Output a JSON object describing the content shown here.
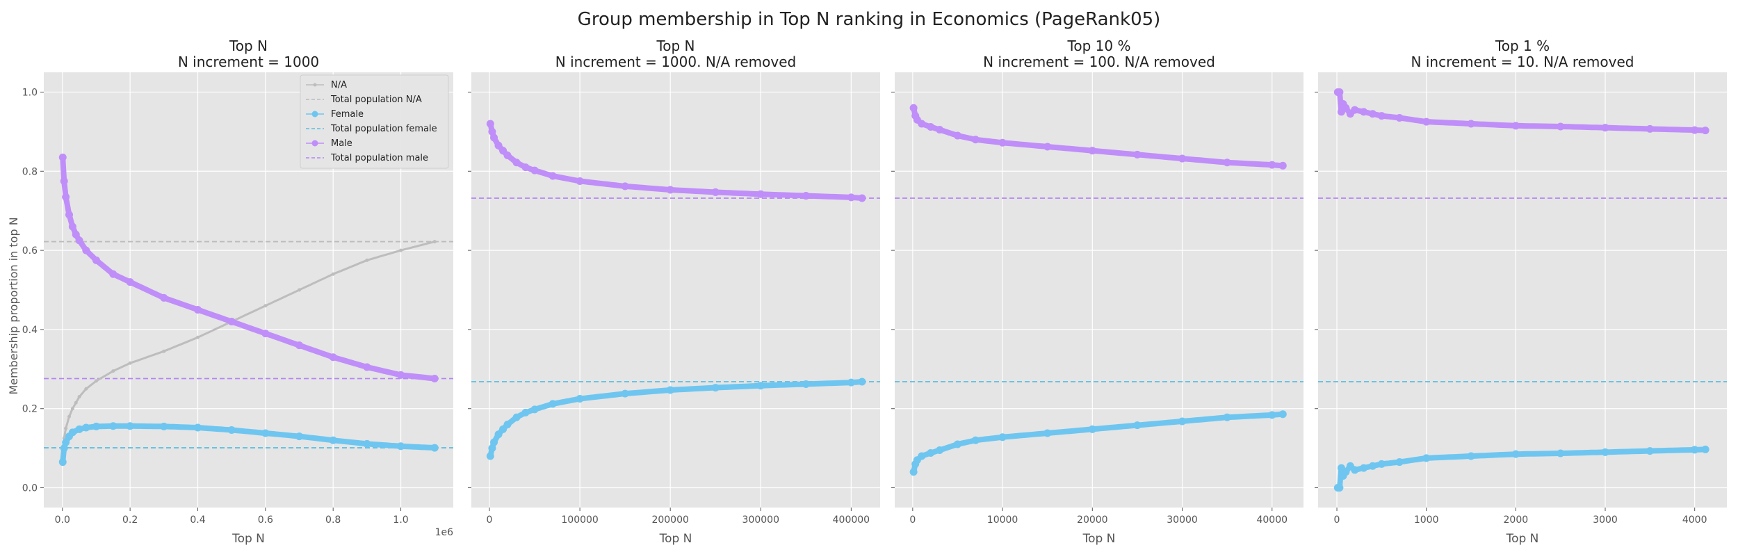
{
  "figure": {
    "title": "Group membership in Top N ranking in Economics (PageRank05)",
    "ylabel": "Membership proportion in top N"
  },
  "colors": {
    "na": "#bdbdbd",
    "female": "#6ec6f0",
    "male": "#c08ef8",
    "female_ref": "#5bbde0",
    "male_ref": "#b585f2",
    "na_ref": "#bbbbbb",
    "panel_bg": "#e5e5e5",
    "grid": "#ffffff"
  },
  "legend": {
    "placement": "top-right",
    "entries": [
      {
        "label": "N/A",
        "kind": "marker",
        "key": "na"
      },
      {
        "label": "Total population N/A",
        "kind": "dashed",
        "key": "na_ref"
      },
      {
        "label": "Female",
        "kind": "marker",
        "key": "female"
      },
      {
        "label": "Total population female",
        "kind": "dashed",
        "key": "female_ref"
      },
      {
        "label": "Male",
        "kind": "marker",
        "key": "male"
      },
      {
        "label": "Total population male",
        "kind": "dashed",
        "key": "male_ref"
      }
    ]
  },
  "chart_data": [
    {
      "type": "scatter",
      "title": "Top N",
      "subtitle": "N increment = 1000",
      "xlabel": "Top N",
      "ylabel": "Membership proportion in top N",
      "xlim": [
        -55000,
        1155000
      ],
      "ylim": [
        -0.05,
        1.05
      ],
      "xticks": [
        0,
        200000,
        400000,
        600000,
        800000,
        1000000
      ],
      "xtick_labels": [
        "0.0",
        "0.2",
        "0.4",
        "0.6",
        "0.8",
        "1.0"
      ],
      "x_offset_label": "1e6",
      "yticks": [
        0.0,
        0.2,
        0.4,
        0.6,
        0.8,
        1.0
      ],
      "ytick_labels": [
        "0.0",
        "0.2",
        "0.4",
        "0.6",
        "0.8",
        "1.0"
      ],
      "grid": true,
      "show_legend": true,
      "reference_lines": [
        {
          "series": "na",
          "y": 0.622
        },
        {
          "series": "female",
          "y": 0.101
        },
        {
          "series": "male",
          "y": 0.276
        }
      ],
      "series": [
        {
          "name": "N/A",
          "key": "na",
          "x": [
            1000,
            5000,
            10000,
            20000,
            30000,
            40000,
            50000,
            70000,
            100000,
            150000,
            200000,
            300000,
            400000,
            500000,
            600000,
            700000,
            800000,
            900000,
            1000000,
            1100000
          ],
          "y": [
            0.1,
            0.125,
            0.15,
            0.18,
            0.2,
            0.215,
            0.23,
            0.25,
            0.27,
            0.295,
            0.315,
            0.345,
            0.38,
            0.42,
            0.46,
            0.5,
            0.54,
            0.575,
            0.6,
            0.622
          ]
        },
        {
          "name": "Female",
          "key": "female",
          "x": [
            1000,
            5000,
            10000,
            20000,
            30000,
            50000,
            70000,
            100000,
            150000,
            200000,
            300000,
            400000,
            500000,
            600000,
            700000,
            800000,
            900000,
            1000000,
            1100000
          ],
          "y": [
            0.065,
            0.1,
            0.115,
            0.13,
            0.14,
            0.148,
            0.152,
            0.155,
            0.156,
            0.156,
            0.155,
            0.152,
            0.146,
            0.138,
            0.13,
            0.12,
            0.111,
            0.105,
            0.101
          ]
        },
        {
          "name": "Male",
          "key": "male",
          "x": [
            1000,
            5000,
            10000,
            20000,
            30000,
            40000,
            50000,
            70000,
            100000,
            150000,
            200000,
            300000,
            400000,
            500000,
            600000,
            700000,
            800000,
            900000,
            1000000,
            1100000
          ],
          "y": [
            0.835,
            0.775,
            0.735,
            0.69,
            0.66,
            0.64,
            0.625,
            0.6,
            0.575,
            0.54,
            0.52,
            0.48,
            0.45,
            0.42,
            0.39,
            0.36,
            0.33,
            0.305,
            0.285,
            0.276
          ]
        }
      ]
    },
    {
      "type": "scatter",
      "title": "Top N",
      "subtitle": "N increment = 1000. N/A removed",
      "xlabel": "Top N",
      "ylabel": "",
      "xlim": [
        -20000,
        432000
      ],
      "ylim": [
        -0.05,
        1.05
      ],
      "xticks": [
        0,
        100000,
        200000,
        300000,
        400000
      ],
      "xtick_labels": [
        "0",
        "100000",
        "200000",
        "300000",
        "400000"
      ],
      "x_offset_label": "",
      "yticks": [
        0.0,
        0.2,
        0.4,
        0.6,
        0.8,
        1.0
      ],
      "ytick_labels": [],
      "grid": true,
      "show_legend": false,
      "reference_lines": [
        {
          "series": "female",
          "y": 0.268
        },
        {
          "series": "male",
          "y": 0.732
        }
      ],
      "series": [
        {
          "name": "Female",
          "key": "female",
          "x": [
            1000,
            3000,
            5000,
            10000,
            15000,
            20000,
            30000,
            40000,
            50000,
            70000,
            100000,
            150000,
            200000,
            250000,
            300000,
            350000,
            400000,
            412000
          ],
          "y": [
            0.08,
            0.1,
            0.115,
            0.135,
            0.148,
            0.16,
            0.178,
            0.19,
            0.198,
            0.212,
            0.225,
            0.238,
            0.247,
            0.253,
            0.258,
            0.262,
            0.266,
            0.268
          ]
        },
        {
          "name": "Male",
          "key": "male",
          "x": [
            1000,
            3000,
            5000,
            10000,
            15000,
            20000,
            30000,
            40000,
            50000,
            70000,
            100000,
            150000,
            200000,
            250000,
            300000,
            350000,
            400000,
            412000
          ],
          "y": [
            0.92,
            0.9,
            0.885,
            0.865,
            0.852,
            0.84,
            0.822,
            0.81,
            0.802,
            0.788,
            0.775,
            0.762,
            0.753,
            0.747,
            0.742,
            0.738,
            0.734,
            0.732
          ]
        }
      ]
    },
    {
      "type": "scatter",
      "title": "Top 10 %",
      "subtitle": "N increment = 100. N/A removed",
      "xlabel": "Top N",
      "ylabel": "",
      "xlim": [
        -2000,
        43500
      ],
      "ylim": [
        -0.05,
        1.05
      ],
      "xticks": [
        0,
        10000,
        20000,
        30000,
        40000
      ],
      "xtick_labels": [
        "0",
        "10000",
        "20000",
        "30000",
        "40000"
      ],
      "x_offset_label": "",
      "yticks": [
        0.0,
        0.2,
        0.4,
        0.6,
        0.8,
        1.0
      ],
      "ytick_labels": [],
      "grid": true,
      "show_legend": false,
      "reference_lines": [
        {
          "series": "female",
          "y": 0.268
        },
        {
          "series": "male",
          "y": 0.732
        }
      ],
      "series": [
        {
          "name": "Female",
          "key": "female",
          "x": [
            100,
            300,
            500,
            1000,
            2000,
            3000,
            5000,
            7000,
            10000,
            15000,
            20000,
            25000,
            30000,
            35000,
            40000,
            41200
          ],
          "y": [
            0.04,
            0.06,
            0.07,
            0.08,
            0.088,
            0.095,
            0.11,
            0.12,
            0.128,
            0.138,
            0.148,
            0.158,
            0.168,
            0.178,
            0.184,
            0.186
          ]
        },
        {
          "name": "Male",
          "key": "male",
          "x": [
            100,
            300,
            500,
            1000,
            2000,
            3000,
            5000,
            7000,
            10000,
            15000,
            20000,
            25000,
            30000,
            35000,
            40000,
            41200
          ],
          "y": [
            0.96,
            0.94,
            0.93,
            0.92,
            0.912,
            0.905,
            0.89,
            0.88,
            0.872,
            0.862,
            0.852,
            0.842,
            0.832,
            0.822,
            0.816,
            0.814
          ]
        }
      ]
    },
    {
      "type": "scatter",
      "title": "Top 1 %",
      "subtitle": "N increment = 10. N/A removed",
      "xlabel": "Top N",
      "ylabel": "",
      "xlim": [
        -210,
        4360
      ],
      "ylim": [
        -0.05,
        1.05
      ],
      "xticks": [
        0,
        1000,
        2000,
        3000,
        4000
      ],
      "xtick_labels": [
        "0",
        "1000",
        "2000",
        "3000",
        "4000"
      ],
      "x_offset_label": "",
      "yticks": [
        0.0,
        0.2,
        0.4,
        0.6,
        0.8,
        1.0
      ],
      "ytick_labels": [],
      "grid": true,
      "show_legend": false,
      "reference_lines": [
        {
          "series": "female",
          "y": 0.268
        },
        {
          "series": "male",
          "y": 0.732
        }
      ],
      "series": [
        {
          "name": "Female",
          "key": "female",
          "x": [
            10,
            30,
            50,
            70,
            100,
            150,
            200,
            300,
            400,
            500,
            700,
            1000,
            1500,
            2000,
            2500,
            3000,
            3500,
            4000,
            4120
          ],
          "y": [
            0.0,
            0.0,
            0.05,
            0.03,
            0.04,
            0.055,
            0.045,
            0.05,
            0.055,
            0.06,
            0.065,
            0.075,
            0.08,
            0.085,
            0.087,
            0.09,
            0.093,
            0.096,
            0.097
          ]
        },
        {
          "name": "Male",
          "key": "male",
          "x": [
            10,
            30,
            50,
            70,
            100,
            150,
            200,
            300,
            400,
            500,
            700,
            1000,
            1500,
            2000,
            2500,
            3000,
            3500,
            4000,
            4120
          ],
          "y": [
            1.0,
            1.0,
            0.95,
            0.97,
            0.96,
            0.945,
            0.955,
            0.95,
            0.945,
            0.94,
            0.935,
            0.925,
            0.92,
            0.915,
            0.913,
            0.91,
            0.907,
            0.904,
            0.903
          ]
        }
      ]
    }
  ]
}
